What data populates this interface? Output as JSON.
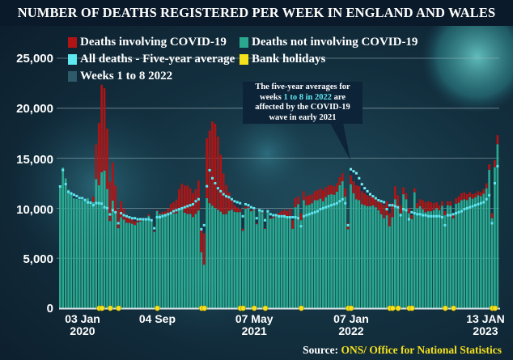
{
  "title": "NUMBER OF DEATHS REGISTERED PER WEEK IN ENGLAND AND WALES",
  "legend": [
    {
      "label": "Deaths involving COVID-19",
      "color": "#b01414"
    },
    {
      "label": "Deaths not involving COVID-19",
      "color": "#2aa890"
    },
    {
      "label": "All deaths - Five-year average",
      "color": "#5ee8f0"
    },
    {
      "label": "Bank holidays",
      "color": "#f5e11c"
    },
    {
      "label": "Weeks 1 to 8 2022",
      "color": "#2e5a6a"
    }
  ],
  "annotation": {
    "line1": "The five-year averages for",
    "line2_pre": "weeks ",
    "line2_hl": "1 to 8 in 2022",
    "line2_post": " are",
    "line3": "affected by the COVID-19",
    "line4": "wave in early 2021"
  },
  "source": {
    "prefix": "Source: ",
    "text": "ONS/ Office for National Statistics"
  },
  "chart_data": {
    "type": "bar",
    "stacked": true,
    "grid": true,
    "ylim": [
      0,
      25000
    ],
    "yticks": [
      "0",
      "5,000",
      "10,000",
      "15,000",
      "20,000",
      "25,000"
    ],
    "xticks": [
      {
        "week": "2020-W01",
        "line1": "03 Jan",
        "line2": "2020"
      },
      {
        "week": "2020-W36",
        "line1": "04 Sep",
        "line2": ""
      },
      {
        "week": "2021-W18",
        "line1": "07 May",
        "line2": "2021"
      },
      {
        "week": "2022-W01",
        "line1": "07 Jan",
        "line2": "2022"
      },
      {
        "week": "2023-W02",
        "line1": "13 JAN",
        "line2": "2023"
      }
    ],
    "years": [
      {
        "year": 2020,
        "total": [
          12254,
          14058,
          12990,
          11856,
          11612,
          10986,
          10944,
          10841,
          10816,
          10895,
          11019,
          10645,
          11141,
          16387,
          18516,
          22351,
          21997,
          17953,
          12657,
          14573,
          12288,
          9824,
          10709,
          9976,
          9339,
          9140,
          8979,
          8690,
          8891,
          8891,
          9017,
          8946,
          9392,
          8891,
          7739,
          9811,
          9523,
          9634,
          9683,
          9975,
          10436,
          10603,
          10878,
          11916,
          12465,
          12254,
          12276,
          12000,
          11520,
          11900,
          12760,
          8010,
          7500
        ],
        "covid": [
          0,
          0,
          0,
          0,
          0,
          0,
          0,
          0,
          0,
          0,
          5,
          103,
          539,
          3475,
          6213,
          8758,
          8237,
          6035,
          3930,
          3810,
          2589,
          1822,
          1588,
          1114,
          783,
          606,
          532,
          366,
          295,
          217,
          193,
          152,
          139,
          138,
          101,
          99,
          139,
          215,
          321,
          437,
          760,
          1126,
          1379,
          1937,
          2466,
          2697,
          2838,
          2569,
          2394,
          2465,
          2986,
          2400,
          3144
        ],
        "five_year_avg": [
          12175,
          13822,
          12413,
          11636,
          11480,
          11340,
          11215,
          11014,
          11007,
          10824,
          10586,
          10557,
          10305,
          10520,
          10497,
          10458,
          10101,
          10008,
          9380,
          9800,
          9600,
          8500,
          9500,
          9300,
          9200,
          9100,
          9000,
          9000,
          8900,
          8900,
          8900,
          8900,
          8900,
          8800,
          8000,
          9100,
          9100,
          9200,
          9300,
          9400,
          9500,
          9700,
          9800,
          9900,
          10000,
          10100,
          10200,
          10300,
          10400,
          10700,
          10900,
          7900,
          8300
        ]
      },
      {
        "year": 2021,
        "total": [
          17000,
          17751,
          18676,
          18448,
          17177,
          15354,
          13482,
          12326,
          11592,
          10987,
          10311,
          10090,
          9955,
          7966,
          10140,
          10200,
          9800,
          9900,
          8500,
          9850,
          9600,
          8000,
          9700,
          9050,
          9150,
          9350,
          9550,
          9700,
          9850,
          9700,
          9950,
          8800,
          11000,
          11200,
          9500,
          11700,
          11200,
          11300,
          11400,
          11700,
          11800,
          12000,
          11800,
          12100,
          12300,
          12300,
          12200,
          12500,
          13100,
          13500,
          12000,
          8500
        ],
        "covid": [
          6000,
          7245,
          8422,
          8433,
          7320,
          5691,
          4079,
          2914,
          1856,
          1129,
          664,
          485,
          340,
          225,
          180,
          150,
          110,
          100,
          95,
          90,
          85,
          70,
          90,
          100,
          120,
          180,
          250,
          400,
          550,
          700,
          750,
          850,
          900,
          800,
          700,
          900,
          900,
          950,
          900,
          900,
          1000,
          1050,
          1100,
          1000,
          950,
          900,
          850,
          850,
          800,
          800,
          850,
          600
        ],
        "five_year_avg": [
          12200,
          13800,
          13000,
          12500,
          12000,
          11700,
          11400,
          11200,
          11100,
          10900,
          10700,
          10600,
          10500,
          9200,
          10400,
          10300,
          10100,
          10000,
          9000,
          9800,
          9700,
          8800,
          9700,
          9400,
          9300,
          9300,
          9200,
          9200,
          9200,
          9100,
          9100,
          9100,
          9100,
          9000,
          8200,
          9200,
          9300,
          9400,
          9500,
          9600,
          9700,
          9900,
          10000,
          10100,
          10200,
          10300,
          10400,
          10500,
          10700,
          10900,
          10500,
          8300
        ]
      },
      {
        "year": 2022,
        "total": [
          13300,
          12700,
          12300,
          12200,
          11700,
          11500,
          11300,
          11200,
          11200,
          11000,
          10800,
          10500,
          10300,
          10700,
          9500,
          10500,
          12200,
          11300,
          10300,
          12100,
          11500,
          10000,
          9300,
          12000,
          10500,
          10900,
          10800,
          10600,
          10700,
          10600,
          10500,
          10600,
          10300,
          10700,
          9700,
          10700,
          10700,
          9500,
          11000,
          11200,
          11500,
          11600,
          11400,
          11600,
          11400,
          11500,
          11700,
          11600,
          11900,
          12500,
          14400,
          9500
        ],
        "covid": [
          900,
          1200,
          1400,
          1400,
          1300,
          1200,
          1100,
          1000,
          900,
          900,
          1000,
          1100,
          1300,
          1400,
          1300,
          1400,
          1300,
          1100,
          800,
          700,
          600,
          500,
          400,
          400,
          500,
          700,
          900,
          1000,
          1000,
          900,
          700,
          600,
          500,
          450,
          400,
          400,
          450,
          500,
          550,
          650,
          700,
          700,
          600,
          500,
          450,
          400,
          400,
          400,
          450,
          500,
          550,
          500
        ],
        "five_year_avg": [
          13900,
          13700,
          13500,
          13000,
          12400,
          12000,
          11700,
          11400,
          11200,
          11000,
          10800,
          10700,
          10600,
          9900,
          10300,
          10300,
          10200,
          10100,
          9300,
          9900,
          9800,
          8900,
          9600,
          9500,
          9400,
          9400,
          9300,
          9300,
          9200,
          9200,
          9200,
          9200,
          9200,
          9100,
          8300,
          9300,
          9300,
          9400,
          9500,
          9600,
          9700,
          9900,
          10000,
          10100,
          10200,
          10300,
          10400,
          10500,
          10600,
          10900,
          11300,
          8500
        ]
      },
      {
        "year": 2023,
        "total": [
          14800,
          17300
        ],
        "covid": [
          700,
          900
        ],
        "five_year_avg": [
          12500,
          14200
        ]
      }
    ],
    "bank_holiday_weeks": [
      "2020-W15",
      "2020-W16",
      "2020-W19",
      "2020-W22",
      "2020-W36",
      "2020-W52",
      "2020-W53",
      "2021-W13",
      "2021-W14",
      "2021-W18",
      "2021-W22",
      "2021-W35",
      "2021-W52",
      "2022-W01",
      "2022-W15",
      "2022-W16",
      "2022-W18",
      "2022-W22",
      "2022-W23",
      "2022-W35",
      "2022-W38",
      "2022-W52",
      "2023-W01"
    ]
  }
}
